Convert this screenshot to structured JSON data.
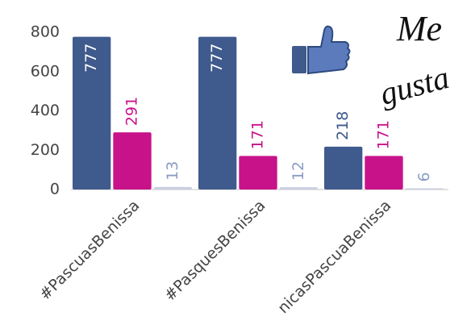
{
  "chart_data": {
    "type": "bar",
    "categories": [
      "#PascuasBenissa",
      "#PasquesBenissa",
      "nicasPascuaBenissa"
    ],
    "series": [
      {
        "color": "#3f5a8c",
        "values": [
          777,
          777,
          218
        ]
      },
      {
        "color": "#c8128a",
        "values": [
          291,
          171,
          171
        ]
      },
      {
        "color": "#c9cfe2",
        "values": [
          13,
          12,
          6
        ]
      }
    ],
    "ylim": [
      0,
      800
    ],
    "yticks": [
      0,
      200,
      400,
      600,
      800
    ],
    "grid": false,
    "annotations": [
      "Me",
      "gusta"
    ]
  }
}
